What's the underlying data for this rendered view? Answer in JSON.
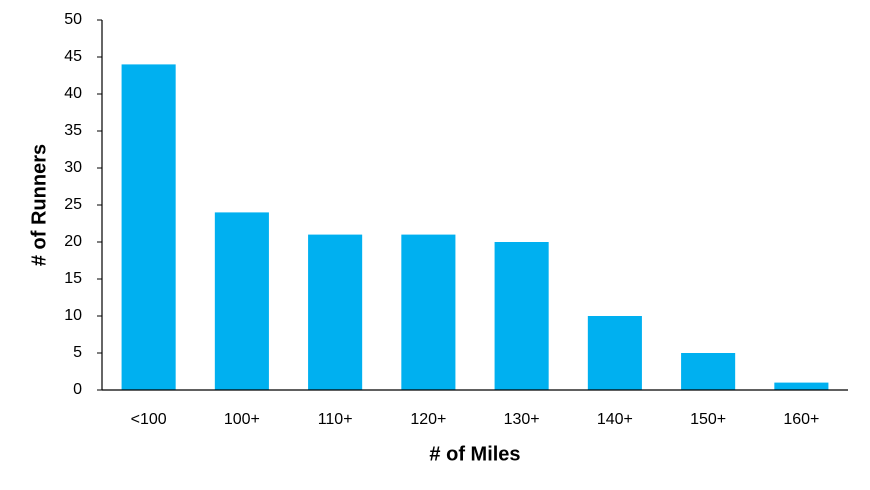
{
  "chart_data": {
    "type": "bar",
    "x_label": "# of Miles",
    "y_label": "# of Runners",
    "categories": [
      "<100",
      "100+",
      "110+",
      "120+",
      "130+",
      "140+",
      "150+",
      "160+"
    ],
    "values": [
      44,
      24,
      21,
      21,
      20,
      10,
      5,
      1
    ],
    "color": "#00b0f0",
    "ylim": [
      0,
      50
    ],
    "yticks": [
      0,
      5,
      10,
      15,
      20,
      25,
      30,
      35,
      40,
      45,
      50
    ],
    "grid": false
  }
}
